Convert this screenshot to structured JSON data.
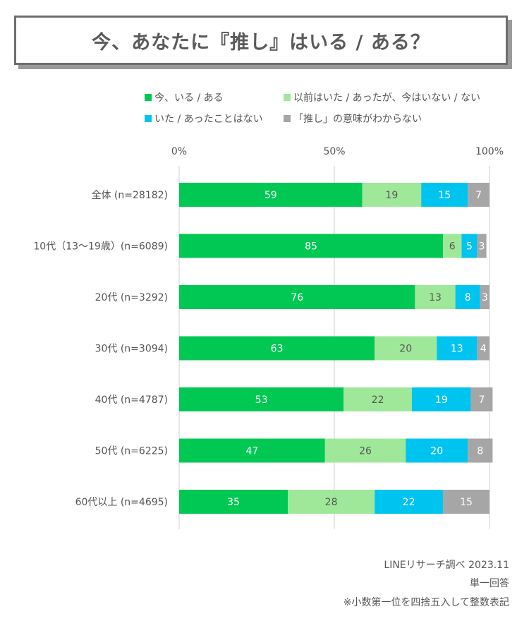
{
  "title": "今、あなたに『推し』はいる / ある？",
  "legend": [
    {
      "label": "今、いる / ある",
      "color": "#00c853"
    },
    {
      "label": "以前はいた / あったが、今はいない / ない",
      "color": "#9fe89a"
    },
    {
      "label": "いた / あったことはない",
      "color": "#00c4f0"
    },
    {
      "label": "「推し」の意味がわからない",
      "color": "#a6a6a6"
    }
  ],
  "chart_data": {
    "type": "bar",
    "orientation": "horizontal",
    "stacked": true,
    "xlim": [
      0,
      100
    ],
    "x_ticks": [
      "0%",
      "50%",
      "100%"
    ],
    "categories": [
      "全体 (n=28182)",
      "10代（13～19歳）(n=6089)",
      "20代 (n=3292)",
      "30代 (n=3094)",
      "40代 (n=4787)",
      "50代 (n=6225)",
      "60代以上 (n=4695)"
    ],
    "series": [
      {
        "name": "今、いる / ある",
        "color": "#00c853",
        "label_color": "#ffffff",
        "values": [
          59,
          85,
          76,
          63,
          53,
          47,
          35
        ]
      },
      {
        "name": "以前はいた / あったが、今はいない / ない",
        "color": "#9fe89a",
        "label_color": "#555555",
        "values": [
          19,
          6,
          13,
          20,
          22,
          26,
          28
        ]
      },
      {
        "name": "いた / あったことはない",
        "color": "#00c4f0",
        "label_color": "#ffffff",
        "values": [
          15,
          5,
          8,
          13,
          19,
          20,
          22
        ]
      },
      {
        "name": "「推し」の意味がわからない",
        "color": "#a6a6a6",
        "label_color": "#ffffff",
        "values": [
          7,
          3,
          3,
          4,
          7,
          8,
          15
        ]
      }
    ]
  },
  "footer": {
    "source": "LINEリサーチ調べ 2023.11",
    "answer_type": "単一回答",
    "note": "※小数第一位を四捨五入して整数表記"
  }
}
